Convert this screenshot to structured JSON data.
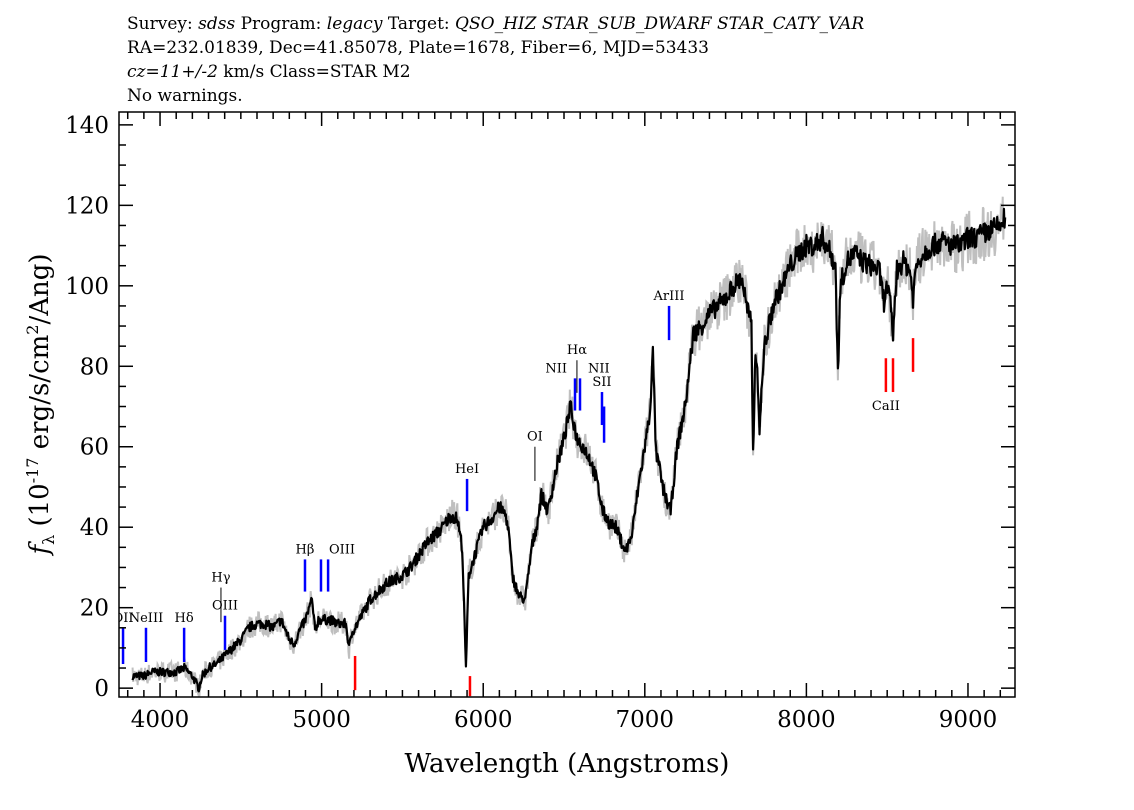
{
  "header": {
    "line1": {
      "survey_label": "Survey:",
      "survey": "sdss",
      "program_label": "Program:",
      "program": "legacy",
      "target_label": "Target:",
      "target": "QSO_HIZ STAR_SUB_DWARF STAR_CATY_VAR"
    },
    "line2": "RA=232.01839, Dec=41.85078, Plate=1678, Fiber=6, MJD=53433",
    "line3": {
      "cz": "cz=11+/-2",
      "rest": " km/s Class=STAR M2"
    },
    "line4": "No warnings."
  },
  "chart_data": {
    "type": "line",
    "xlabel": "Wavelength (Angstroms)",
    "ylabel": "f_λ (10^-17 erg/s/cm^2/Ang)",
    "xlim": [
      3746,
      9291
    ],
    "ylim": [
      -2.2,
      143.2
    ],
    "xticks": [
      4000,
      5000,
      6000,
      7000,
      8000,
      9000
    ],
    "yticks": [
      0,
      20,
      40,
      60,
      80,
      100,
      120,
      140
    ],
    "colors": {
      "flux": "#000000",
      "error": "#bfbfbf",
      "emission": "#0000ff",
      "absorption": "#ff0000",
      "sky": "#000000"
    },
    "series": [
      {
        "x": [
          3830,
          3900,
          3950,
          4000,
          4050,
          4100,
          4150,
          4200,
          4240,
          4260,
          4300,
          4350,
          4400,
          4450,
          4500,
          4550,
          4600,
          4650,
          4700,
          4750,
          4800,
          4830,
          4860,
          4900,
          4940,
          4960,
          4980,
          5000,
          5050,
          5100,
          5150,
          5170,
          5190,
          5220,
          5300,
          5350,
          5400,
          5450,
          5500,
          5550,
          5600,
          5650,
          5700,
          5750,
          5800,
          5840,
          5870,
          5893,
          5910,
          5940,
          6000,
          6050,
          6100,
          6140,
          6160,
          6180,
          6220,
          6260,
          6300,
          6330,
          6360,
          6400,
          6430,
          6460,
          6500,
          6540,
          6560,
          6580,
          6620,
          6660,
          6700,
          6740,
          6780,
          6820,
          6860,
          6880,
          6920,
          6960,
          7000,
          7030,
          7050,
          7070,
          7090,
          7110,
          7140,
          7160,
          7200,
          7250,
          7300,
          7350,
          7400,
          7450,
          7500,
          7550,
          7600,
          7630,
          7660,
          7670,
          7685,
          7700,
          7710,
          7740,
          7800,
          7850,
          7900,
          7950,
          8000,
          8050,
          8100,
          8150,
          8180,
          8195,
          8210,
          8250,
          8300,
          8350,
          8400,
          8450,
          8480,
          8500,
          8520,
          8536,
          8560,
          8600,
          8640,
          8660,
          8680,
          8720,
          8780,
          8840,
          8900,
          8960,
          9000,
          9050,
          9100,
          9150,
          9200,
          9230
        ],
        "y": [
          3,
          3,
          4,
          4,
          4,
          4,
          5,
          3,
          0,
          3,
          5,
          6,
          8,
          10,
          12,
          15,
          16,
          16,
          15,
          17,
          12,
          11,
          14,
          17,
          22,
          14,
          17,
          17,
          17,
          16,
          16,
          10,
          14,
          16,
          22,
          24,
          26,
          27,
          28,
          30,
          33,
          36,
          38,
          40,
          43,
          42,
          35,
          5,
          28,
          32,
          40,
          42,
          45,
          43,
          38,
          28,
          23,
          22,
          35,
          40,
          48,
          44,
          50,
          56,
          62,
          70,
          66,
          62,
          60,
          57,
          52,
          44,
          41,
          40,
          36,
          34,
          38,
          50,
          60,
          68,
          83,
          58,
          55,
          50,
          46,
          44,
          60,
          70,
          88,
          90,
          93,
          95,
          97,
          100,
          102,
          95,
          90,
          58,
          85,
          75,
          65,
          85,
          96,
          100,
          105,
          108,
          110,
          110,
          112,
          108,
          105,
          78,
          100,
          106,
          108,
          106,
          105,
          104,
          96,
          100,
          95,
          88,
          104,
          106,
          104,
          97,
          105,
          108,
          110,
          111,
          110,
          110,
          112,
          112,
          113,
          114,
          115,
          117
        ]
      }
    ],
    "line_markers": [
      {
        "label": "OII",
        "wavelength": 3771,
        "flux": [
          6,
          15
        ],
        "kind": "emission",
        "label_pos": "above"
      },
      {
        "label": "NeIII",
        "wavelength": 3913,
        "flux": [
          6.5,
          15
        ],
        "kind": "emission",
        "label_pos": "above"
      },
      {
        "label": "Hδ",
        "wavelength": 4149,
        "flux": [
          6.5,
          15
        ],
        "kind": "emission",
        "label_pos": "above"
      },
      {
        "label": "Hγ",
        "wavelength": 4377,
        "flux": [
          16.4,
          25
        ],
        "kind": "sky",
        "label_pos": "above"
      },
      {
        "label": "OIII",
        "wavelength": 4402,
        "flux": [
          9.5,
          18
        ],
        "kind": "emission",
        "label_pos": "above"
      },
      {
        "label": "Hβ",
        "wavelength": 4897,
        "flux": [
          24,
          32
        ],
        "kind": "emission",
        "label_pos": "above"
      },
      {
        "label": "OIII",
        "wavelength": 4996,
        "flux": [
          24,
          32
        ],
        "kind": "emission",
        "label_pos": "above-right"
      },
      {
        "label": "",
        "wavelength": 5040,
        "flux": [
          24,
          32
        ],
        "kind": "emission",
        "label_pos": "none"
      },
      {
        "label": "",
        "wavelength": 5207,
        "flux": [
          -0.5,
          8
        ],
        "kind": "absorption",
        "label_pos": "none"
      },
      {
        "label": "HeI",
        "wavelength": 5900,
        "flux": [
          44,
          52
        ],
        "kind": "emission",
        "label_pos": "above"
      },
      {
        "label": "",
        "wavelength": 5918,
        "flux": [
          -2,
          3
        ],
        "kind": "absorption",
        "label_pos": "none"
      },
      {
        "label": "OI",
        "wavelength": 6320,
        "flux": [
          51.5,
          60
        ],
        "kind": "sky",
        "label_pos": "above"
      },
      {
        "label": "NII",
        "wavelength": 6568,
        "flux": [
          69,
          77
        ],
        "kind": "emission",
        "label_pos": "above-left"
      },
      {
        "label": "Hα",
        "wavelength": 6580,
        "flux": [
          73.4,
          81.5
        ],
        "kind": "sky",
        "label_pos": "above"
      },
      {
        "label": "NII",
        "wavelength": 6599,
        "flux": [
          69,
          77
        ],
        "kind": "emission",
        "label_pos": "above-right"
      },
      {
        "label": "SII",
        "wavelength": 6735,
        "flux": [
          65.4,
          73.6
        ],
        "kind": "emission",
        "label_pos": "above"
      },
      {
        "label": "",
        "wavelength": 6748,
        "flux": [
          61,
          70
        ],
        "kind": "emission",
        "label_pos": "none"
      },
      {
        "label": "ArIII",
        "wavelength": 7150,
        "flux": [
          86.5,
          95
        ],
        "kind": "emission",
        "label_pos": "above"
      },
      {
        "label": "CaII",
        "wavelength": 8492,
        "flux": [
          73.6,
          82
        ],
        "kind": "absorption",
        "label_pos": "below-right"
      },
      {
        "label": "",
        "wavelength": 8536,
        "flux": [
          73.6,
          82
        ],
        "kind": "absorption",
        "label_pos": "none"
      },
      {
        "label": "",
        "wavelength": 8660,
        "flux": [
          78.6,
          87
        ],
        "kind": "absorption",
        "label_pos": "none"
      }
    ]
  }
}
